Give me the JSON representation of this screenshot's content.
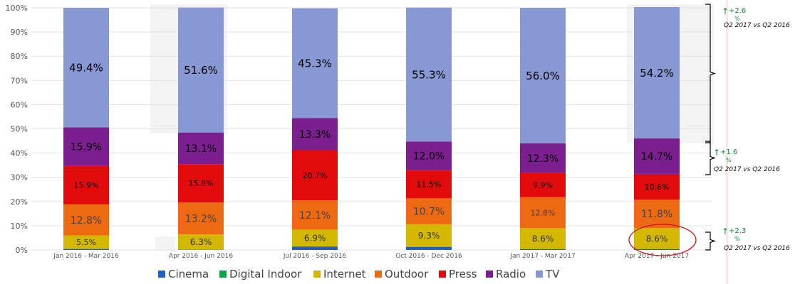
{
  "chart_data": {
    "type": "bar",
    "stacked": true,
    "percent_stacked": true,
    "title": "",
    "xlabel": "",
    "ylabel": "",
    "ylim": [
      0,
      100
    ],
    "y_ticks": [
      "0%",
      "10%",
      "20%",
      "30%",
      "40%",
      "50%",
      "60%",
      "70%",
      "80%",
      "90%",
      "100%"
    ],
    "grid": true,
    "legend_position": "bottom",
    "categories": [
      "Jan 2016 - Mar 2016",
      "Apr 2016 - Jun 2016",
      "Jul 2016 - Sep 2016",
      "Oct 2016 - Dec 2016",
      "Jan 2017 - Mar 2017",
      "Apr 2017 - Jun 2017"
    ],
    "series": [
      {
        "name": "Cinema",
        "color": "#1f5fbf",
        "values": [
          0.4,
          0.1,
          1.4,
          1.2,
          0.3,
          0.3
        ],
        "labels": [
          "",
          "",
          "",
          "",
          "",
          ""
        ]
      },
      {
        "name": "Digital Indoor",
        "color": "#13a04a",
        "values": [
          0.1,
          0.0,
          0.1,
          0.1,
          0.1,
          0.1
        ],
        "labels": [
          "",
          "",
          "",
          "",
          "",
          ""
        ]
      },
      {
        "name": "Internet",
        "color": "#d4b800",
        "values": [
          5.5,
          6.3,
          6.9,
          9.3,
          8.6,
          8.6
        ],
        "labels": [
          "5.5%",
          "6.3%",
          "6.9%",
          "9.3%",
          "8.6%",
          "8.6%"
        ]
      },
      {
        "name": "Outdoor",
        "color": "#ee6a12",
        "values": [
          12.8,
          13.2,
          12.1,
          10.7,
          12.8,
          11.8
        ],
        "labels": [
          "12.8%",
          "13.2%",
          "12.1%",
          "10.7%",
          "12.8%",
          "11.8%"
        ]
      },
      {
        "name": "Press",
        "color": "#e20a0a",
        "values": [
          15.9,
          15.8,
          20.7,
          11.5,
          9.9,
          10.6
        ],
        "labels": [
          "15.9%",
          "15.8%",
          "20.7%",
          "11.5%",
          "9.9%",
          "10.6%"
        ]
      },
      {
        "name": "Radio",
        "color": "#7b1f8f",
        "values": [
          15.9,
          13.1,
          13.3,
          12.0,
          12.3,
          14.7
        ],
        "labels": [
          "15.9%",
          "13.1%",
          "13.3%",
          "12.0%",
          "12.3%",
          "14.7%"
        ]
      },
      {
        "name": "TV",
        "color": "#8898d2",
        "values": [
          49.4,
          51.6,
          45.3,
          55.3,
          56.0,
          54.2
        ],
        "labels": [
          "49.4%",
          "51.6%",
          "45.3%",
          "55.3%",
          "56.0%",
          "54.2%"
        ]
      }
    ],
    "annotations": [
      {
        "series": "TV",
        "arrow": "↑",
        "change": "+2.6",
        "unit": "%",
        "comparison": "Q2 2017 vs Q2 2016"
      },
      {
        "series": "Radio",
        "arrow": "↑",
        "change": "+1.6",
        "unit": "%",
        "comparison": "Q2 2017 vs Q2 2016"
      },
      {
        "series": "Internet",
        "arrow": "↑",
        "change": "+2.3",
        "unit": "%",
        "comparison": "Q2 2017 vs Q2 2016"
      }
    ],
    "highlight": {
      "category": "Apr 2017 - Jun 2017",
      "series": "Internet",
      "color": "#cc1111"
    },
    "annotation_color": "#0a8a3a"
  }
}
